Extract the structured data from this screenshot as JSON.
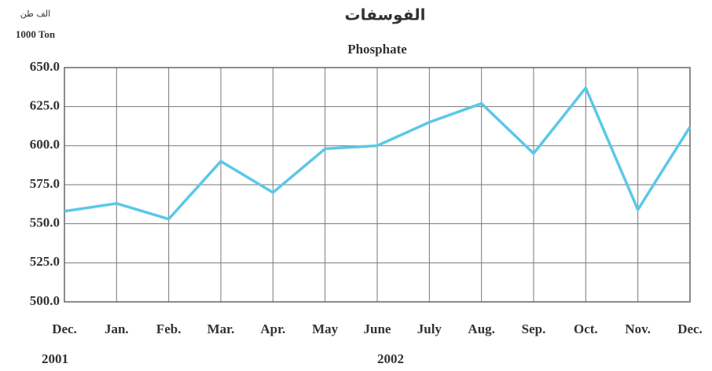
{
  "chart_data": {
    "type": "line",
    "title": "الفوسفات",
    "subtitle": "Phosphate",
    "unit_labels": [
      "الف طن",
      "1000 Ton"
    ],
    "categories": [
      "Dec.",
      "Jan.",
      "Feb.",
      "Mar.",
      "Apr.",
      "May",
      "June",
      "July",
      "Aug.",
      "Sep.",
      "Oct.",
      "Nov.",
      "Dec."
    ],
    "year_labels": [
      "2001",
      "2002"
    ],
    "series": [
      {
        "name": "Phosphate",
        "color": "#5bc8e8",
        "values": [
          558,
          563,
          553,
          590,
          570,
          598,
          600,
          615,
          627,
          595,
          637,
          559,
          612
        ]
      }
    ],
    "ylim": [
      500,
      650
    ],
    "yticks": [
      {
        "value": 500,
        "label": "500.0"
      },
      {
        "value": 525,
        "label": "525.0"
      },
      {
        "value": 550,
        "label": "550.0"
      },
      {
        "value": 575,
        "label": "575.0"
      },
      {
        "value": 600,
        "label": "600.0"
      },
      {
        "value": 625,
        "label": "625.0"
      },
      {
        "value": 650,
        "label": "650.0"
      }
    ],
    "grid": true
  }
}
